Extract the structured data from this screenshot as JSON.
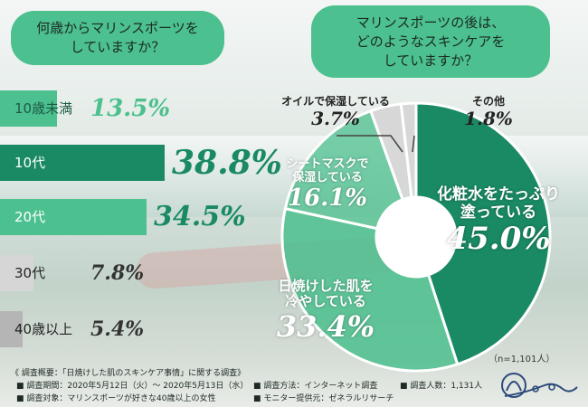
{
  "left_question": "何歳からマリンスポーツを\nしていますか？",
  "right_question": "マリンスポーツの後は、\nどのようなスキンケアを\nしていますか？",
  "colors": {
    "dark": "#1a8a64",
    "light": "#4cc08e",
    "grey": "#b5b5b5",
    "lightgrey": "#d6d6d6"
  },
  "chart_data": [
    {
      "type": "bar",
      "title": "何歳からマリンスポーツをしていますか？",
      "categories": [
        "10歳未満",
        "10代",
        "20代",
        "30代",
        "40歳以上"
      ],
      "values": [
        13.5,
        38.8,
        34.5,
        7.8,
        5.4
      ],
      "value_labels": [
        "13.5%",
        "38.8%",
        "34.5%",
        "7.8%",
        "5.4%"
      ]
    },
    {
      "type": "pie",
      "title": "マリンスポーツの後は、どのようなスキンケアをしていますか？",
      "categories": [
        "化粧水をたっぷり塗っている",
        "日焼けした肌を冷やしている",
        "シートマスクで保湿している",
        "オイルで保湿している",
        "その他"
      ],
      "display_names": [
        "化粧水をたっぷり\n塗っている",
        "日焼けした肌を\n冷やしている",
        "シートマスクで\n保湿している",
        "オイルで保湿している",
        "その他"
      ],
      "values": [
        45.0,
        33.4,
        16.1,
        3.7,
        1.8
      ],
      "value_labels": [
        "45.0%",
        "33.4%",
        "16.1%",
        "3.7%",
        "1.8%"
      ],
      "note": "（n=1,101人）"
    }
  ],
  "footer": {
    "summary": "《 調査概要：「日焼けした肌のスキンケア事情」に関する調査》",
    "period": "■ 調査期間：2020年5月12日（火）～ 2020年5月13日（水）",
    "target": "■ 調査対象：マリンスポーツが好きな40歳以上の女性",
    "method": "■ 調査方法：インターネット調査",
    "provider": "■ モニター提供元：ゼネラルリサーチ",
    "count": "■ 調査人数：1,131人"
  }
}
